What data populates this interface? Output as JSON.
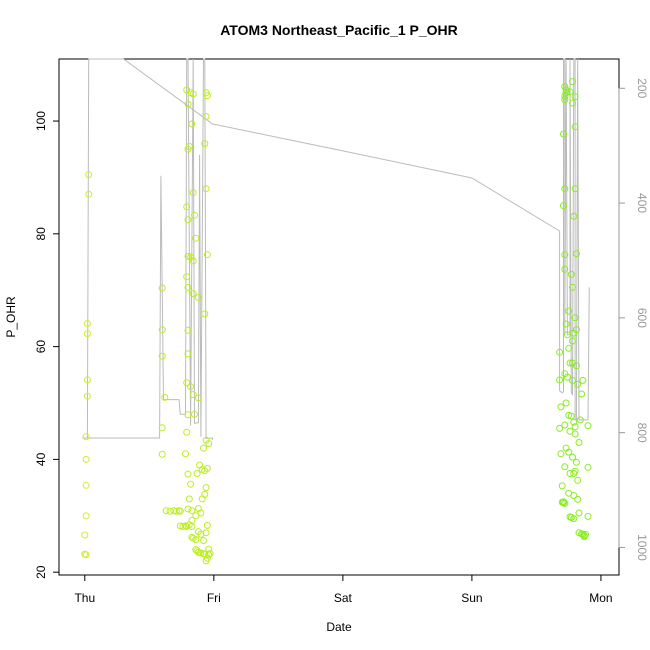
{
  "chart_data": {
    "type": "scatter",
    "title": "ATOM3 Northeast_Pacific_1 P_OHR",
    "xlabel": "Date",
    "ylabel": "P_OHR",
    "x_ticks": [
      {
        "label": "Thu",
        "value": 0
      },
      {
        "label": "Fri",
        "value": 1
      },
      {
        "label": "Sat",
        "value": 2
      },
      {
        "label": "Sun",
        "value": 3
      },
      {
        "label": "Mon",
        "value": 4
      }
    ],
    "xlim": [
      -0.2,
      4.14
    ],
    "ylim": [
      19.5,
      111
    ],
    "y_ticks": [
      20,
      40,
      60,
      80,
      100
    ],
    "right_axis": {
      "label": "",
      "ticks": [
        200,
        400,
        600,
        800,
        1000
      ],
      "lim": [
        1048,
        149
      ],
      "color": "#999999"
    },
    "colors": {
      "series_early": "#ccee33",
      "series_mid": "#bbee22",
      "series_late": "#88ee22",
      "line": "#bbbbbb"
    },
    "series": [
      {
        "values": [
          [
            0.0,
            23.2
          ],
          [
            0.01,
            23.1
          ],
          [
            0.0,
            26.6
          ],
          [
            0.01,
            30.0
          ],
          [
            0.01,
            35.4
          ],
          [
            0.01,
            40.0
          ],
          [
            0.01,
            44.0
          ],
          [
            0.02,
            51.2
          ],
          [
            0.02,
            54.1
          ],
          [
            0.02,
            62.3
          ],
          [
            0.02,
            64.1
          ],
          [
            0.03,
            87.0
          ],
          [
            0.03,
            90.5
          ],
          [
            0.6,
            70.4
          ],
          [
            0.6,
            63.0
          ],
          [
            0.6,
            58.3
          ],
          [
            0.62,
            51.0
          ],
          [
            0.6,
            45.6
          ],
          [
            0.6,
            40.9
          ],
          [
            0.63,
            30.9
          ],
          [
            0.66,
            30.8
          ],
          [
            0.69,
            30.9
          ],
          [
            0.71,
            30.8
          ],
          [
            0.73,
            30.9
          ],
          [
            0.74,
            30.8
          ],
          [
            0.74,
            28.2
          ],
          [
            0.76,
            28.1
          ],
          [
            0.78,
            28.2
          ],
          [
            0.79,
            28.1
          ],
          [
            0.78,
            41.0
          ],
          [
            0.79,
            44.8
          ],
          [
            0.8,
            47.9
          ],
          [
            0.82,
            52.9
          ],
          [
            0.84,
            51.5
          ],
          [
            0.85,
            48.0
          ],
          [
            0.79,
            53.6
          ],
          [
            0.8,
            58.7
          ],
          [
            0.8,
            62.9
          ],
          [
            0.8,
            70.5
          ],
          [
            0.79,
            72.4
          ],
          [
            0.8,
            76.0
          ],
          [
            0.8,
            82.5
          ],
          [
            0.79,
            84.8
          ],
          [
            0.8,
            95.0
          ],
          [
            0.81,
            95.5
          ],
          [
            0.8,
            103.0
          ],
          [
            0.79,
            105.5
          ],
          [
            0.82,
            105.0
          ],
          [
            0.84,
            104.8
          ],
          [
            0.83,
            99.5
          ],
          [
            0.84,
            87.3
          ],
          [
            0.85,
            83.3
          ],
          [
            0.82,
            75.9
          ],
          [
            0.84,
            75.2
          ],
          [
            0.84,
            69.4
          ],
          [
            0.86,
            79.2
          ],
          [
            0.88,
            68.7
          ],
          [
            0.88,
            50.9
          ],
          [
            0.81,
            33.0
          ],
          [
            0.82,
            35.6
          ],
          [
            0.8,
            37.4
          ],
          [
            0.8,
            31.2
          ],
          [
            0.83,
            30.9
          ],
          [
            0.83,
            29.2
          ],
          [
            0.81,
            28.4
          ],
          [
            0.83,
            28.1
          ],
          [
            0.83,
            26.2
          ],
          [
            0.84,
            26.0
          ],
          [
            0.86,
            24.0
          ],
          [
            0.87,
            23.8
          ],
          [
            0.88,
            23.5
          ],
          [
            0.9,
            23.4
          ],
          [
            0.92,
            23.3
          ],
          [
            0.93,
            23.2
          ],
          [
            0.95,
            22.5
          ],
          [
            0.94,
            22.0
          ],
          [
            0.96,
            23.1
          ],
          [
            0.97,
            23.3
          ],
          [
            0.96,
            24.1
          ],
          [
            0.86,
            25.8
          ],
          [
            0.88,
            27.2
          ],
          [
            0.9,
            26.7
          ],
          [
            0.92,
            25.6
          ],
          [
            0.94,
            27.0
          ],
          [
            0.95,
            28.3
          ],
          [
            0.86,
            30.0
          ],
          [
            0.88,
            31.3
          ],
          [
            0.9,
            30.5
          ],
          [
            0.91,
            33.0
          ],
          [
            0.93,
            33.8
          ],
          [
            0.94,
            35.0
          ],
          [
            0.87,
            37.5
          ],
          [
            0.89,
            39.0
          ],
          [
            0.91,
            38.2
          ],
          [
            0.93,
            38.0
          ],
          [
            0.95,
            38.4
          ],
          [
            0.92,
            42.0
          ],
          [
            0.94,
            43.4
          ],
          [
            0.96,
            42.8
          ],
          [
            0.93,
            65.8
          ],
          [
            0.95,
            76.3
          ],
          [
            0.94,
            88.0
          ],
          [
            0.93,
            96.0
          ],
          [
            0.94,
            100.8
          ],
          [
            0.95,
            104.5
          ],
          [
            0.94,
            105.0
          ]
        ]
      },
      {
        "values": [
          [
            3.68,
            59.0
          ],
          [
            3.68,
            54.1
          ],
          [
            3.69,
            49.3
          ],
          [
            3.68,
            45.5
          ],
          [
            3.69,
            41.0
          ],
          [
            3.7,
            35.3
          ],
          [
            3.7,
            32.4
          ],
          [
            3.71,
            32.3
          ],
          [
            3.72,
            32.2
          ],
          [
            3.71,
            32.5
          ],
          [
            3.72,
            38.7
          ],
          [
            3.73,
            42.0
          ],
          [
            3.72,
            46.1
          ],
          [
            3.73,
            50.0
          ],
          [
            3.72,
            55.2
          ],
          [
            3.73,
            64.0
          ],
          [
            3.72,
            73.7
          ],
          [
            3.72,
            76.3
          ],
          [
            3.71,
            85.0
          ],
          [
            3.72,
            88.0
          ],
          [
            3.71,
            97.7
          ],
          [
            3.72,
            103.8
          ],
          [
            3.72,
            104.4
          ],
          [
            3.73,
            105.0
          ],
          [
            3.73,
            105.5
          ],
          [
            3.72,
            106.1
          ],
          [
            3.74,
            62.1
          ],
          [
            3.75,
            66.3
          ],
          [
            3.75,
            59.7
          ],
          [
            3.76,
            57.1
          ],
          [
            3.74,
            54.6
          ],
          [
            3.75,
            47.8
          ],
          [
            3.76,
            45.0
          ],
          [
            3.77,
            47.7
          ],
          [
            3.75,
            41.3
          ],
          [
            3.76,
            37.5
          ],
          [
            3.75,
            34.0
          ],
          [
            3.76,
            29.8
          ],
          [
            3.77,
            29.7
          ],
          [
            3.79,
            29.5
          ],
          [
            3.77,
            72.8
          ],
          [
            3.78,
            70.5
          ],
          [
            3.78,
            61.0
          ],
          [
            3.79,
            62.4
          ],
          [
            3.78,
            57.1
          ],
          [
            3.78,
            54.0
          ],
          [
            3.79,
            46.6
          ],
          [
            3.8,
            45.8
          ],
          [
            3.78,
            40.4
          ],
          [
            3.79,
            37.5
          ],
          [
            3.8,
            37.9
          ],
          [
            3.79,
            33.6
          ],
          [
            3.76,
            105.2
          ],
          [
            3.78,
            107.0
          ],
          [
            3.78,
            103.2
          ],
          [
            3.79,
            83.1
          ],
          [
            3.8,
            104.3
          ],
          [
            3.8,
            99.0
          ],
          [
            3.8,
            88.0
          ],
          [
            3.81,
            76.5
          ],
          [
            3.8,
            65.1
          ],
          [
            3.81,
            63.0
          ],
          [
            3.81,
            56.6
          ],
          [
            3.82,
            53.3
          ],
          [
            3.8,
            44.5
          ],
          [
            3.81,
            39.5
          ],
          [
            3.82,
            36.3
          ],
          [
            3.82,
            32.9
          ],
          [
            3.83,
            30.5
          ],
          [
            3.83,
            27.0
          ],
          [
            3.85,
            26.8
          ],
          [
            3.86,
            26.7
          ],
          [
            3.87,
            26.5
          ],
          [
            3.87,
            26.3
          ],
          [
            3.88,
            26.7
          ],
          [
            3.9,
            29.9
          ],
          [
            3.9,
            38.6
          ],
          [
            3.9,
            46.0
          ],
          [
            3.86,
            54.0
          ],
          [
            3.85,
            51.6
          ],
          [
            3.84,
            47.0
          ],
          [
            3.83,
            43.0
          ]
        ]
      }
    ],
    "line": {
      "values": [
        [
          -0.02,
          43.8
        ],
        [
          0.02,
          43.8
        ],
        [
          0.03,
          112
        ],
        [
          0.3,
          112
        ],
        [
          0.99,
          99.5
        ],
        [
          2.0,
          94.7
        ],
        [
          3.0,
          89.9
        ],
        [
          3.68,
          80.5
        ],
        [
          3.68,
          52.2
        ],
        [
          3.7,
          51.8
        ],
        [
          3.71,
          52.0
        ],
        [
          3.71,
          112
        ],
        [
          3.72,
          112
        ],
        [
          3.72,
          62.0
        ],
        [
          3.73,
          112
        ],
        [
          3.74,
          62.1
        ],
        [
          3.76,
          62.1
        ],
        [
          3.76,
          112
        ],
        [
          3.77,
          51.8
        ],
        [
          3.78,
          51.5
        ],
        [
          3.79,
          112
        ],
        [
          3.8,
          112
        ],
        [
          3.8,
          47.0
        ],
        [
          3.81,
          47.0
        ],
        [
          3.82,
          112
        ],
        [
          3.83,
          47.0
        ],
        [
          3.9,
          47.0
        ],
        [
          3.91,
          70.5
        ]
      ],
      "early_segment": [
        [
          0.02,
          43.8
        ],
        [
          0.58,
          43.8
        ],
        [
          0.59,
          90.3
        ],
        [
          0.61,
          50.6
        ],
        [
          0.73,
          50.6
        ],
        [
          0.74,
          48.0
        ],
        [
          0.78,
          48.0
        ],
        [
          0.79,
          112
        ],
        [
          0.8,
          112
        ],
        [
          0.82,
          46.0
        ],
        [
          0.84,
          112
        ],
        [
          0.85,
          46.4
        ],
        [
          0.88,
          46.5
        ],
        [
          0.89,
          94.0
        ],
        [
          0.9,
          44.0
        ],
        [
          0.92,
          112
        ],
        [
          0.93,
          112
        ],
        [
          0.94,
          43.7
        ],
        [
          0.99,
          43.8
        ],
        [
          0.99,
          43.5
        ]
      ]
    }
  }
}
